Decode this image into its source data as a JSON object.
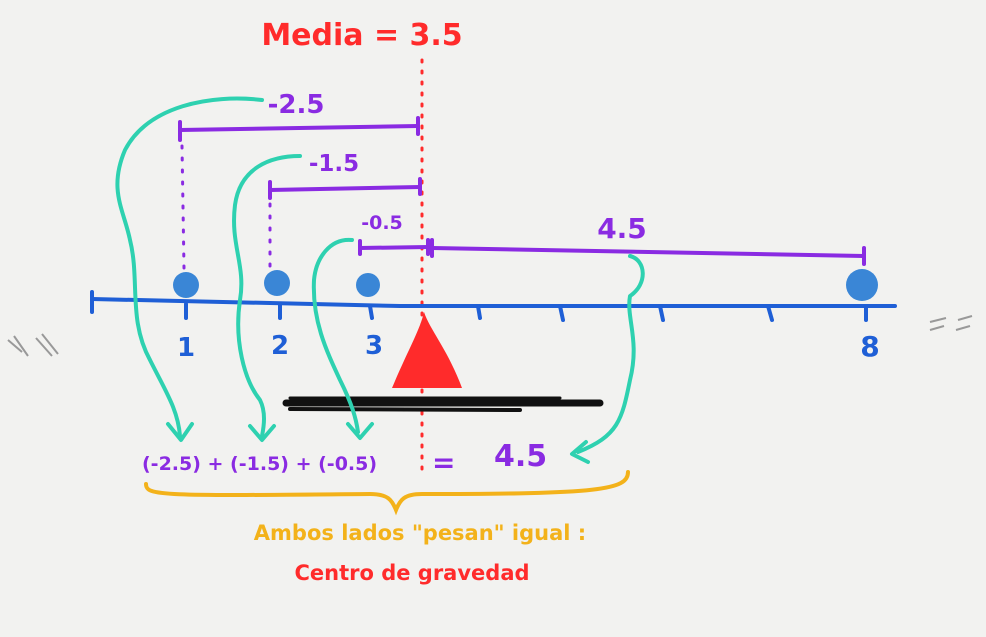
{
  "title": "Media = 3.5",
  "mean": 3.5,
  "points": [
    1,
    2,
    3,
    8
  ],
  "axis_labels": [
    "1",
    "2",
    "3",
    "8"
  ],
  "deviations": [
    {
      "point": 1,
      "label": "-2.5"
    },
    {
      "point": 2,
      "label": "-1.5"
    },
    {
      "point": 3,
      "label": "-0.5"
    },
    {
      "point": 8,
      "label": "4.5"
    }
  ],
  "equation": {
    "left": "(-2.5) + (-1.5) + (-0.5)",
    "equals": "=",
    "right": "4.5"
  },
  "caption": {
    "line1": "Ambos lados \"pesan\" igual :",
    "line2": "Centro de gravedad"
  },
  "colors": {
    "axis": "#1f5fd6",
    "dot": "#3a86d6",
    "deviation": "#8a2be2",
    "arrow": "#2ed1b0",
    "mean": "#ff2b2b",
    "brace": "#f3b21a",
    "base": "#111111"
  }
}
